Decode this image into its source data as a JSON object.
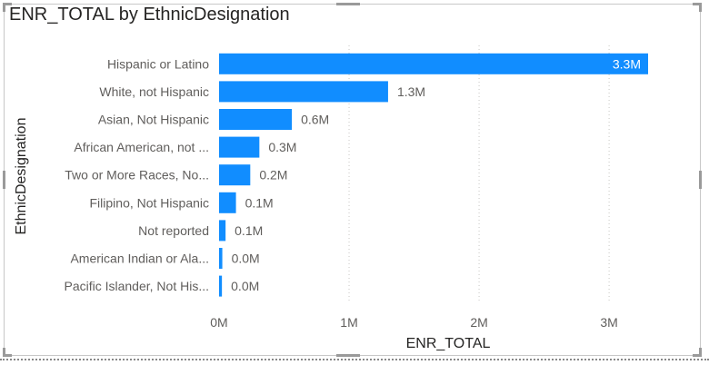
{
  "chart_data": {
    "type": "bar",
    "orientation": "horizontal",
    "title": "ENR_TOTAL by EthnicDesignation",
    "xlabel": "ENR_TOTAL",
    "ylabel": "EthnicDesignation",
    "categories": [
      "Hispanic or Latino",
      "White, not Hispanic",
      "Asian, Not Hispanic",
      "African American, not ...",
      "Two or More Races, No...",
      "Filipino, Not Hispanic",
      "Not reported",
      "American Indian or Ala...",
      "Pacific Islander, Not His..."
    ],
    "values": [
      3300000,
      1300000,
      560000,
      310000,
      240000,
      130000,
      50000,
      25000,
      22000
    ],
    "data_labels": [
      "3.3M",
      "1.3M",
      "0.6M",
      "0.3M",
      "0.2M",
      "0.1M",
      "0.1M",
      "0.0M",
      "0.0M"
    ],
    "xlim": [
      0,
      3300000
    ],
    "xticks": [
      0,
      1000000,
      2000000,
      3000000
    ],
    "xtick_labels": [
      "0M",
      "1M",
      "2M",
      "3M"
    ],
    "grid": true,
    "bar_color": "#118DFF"
  }
}
